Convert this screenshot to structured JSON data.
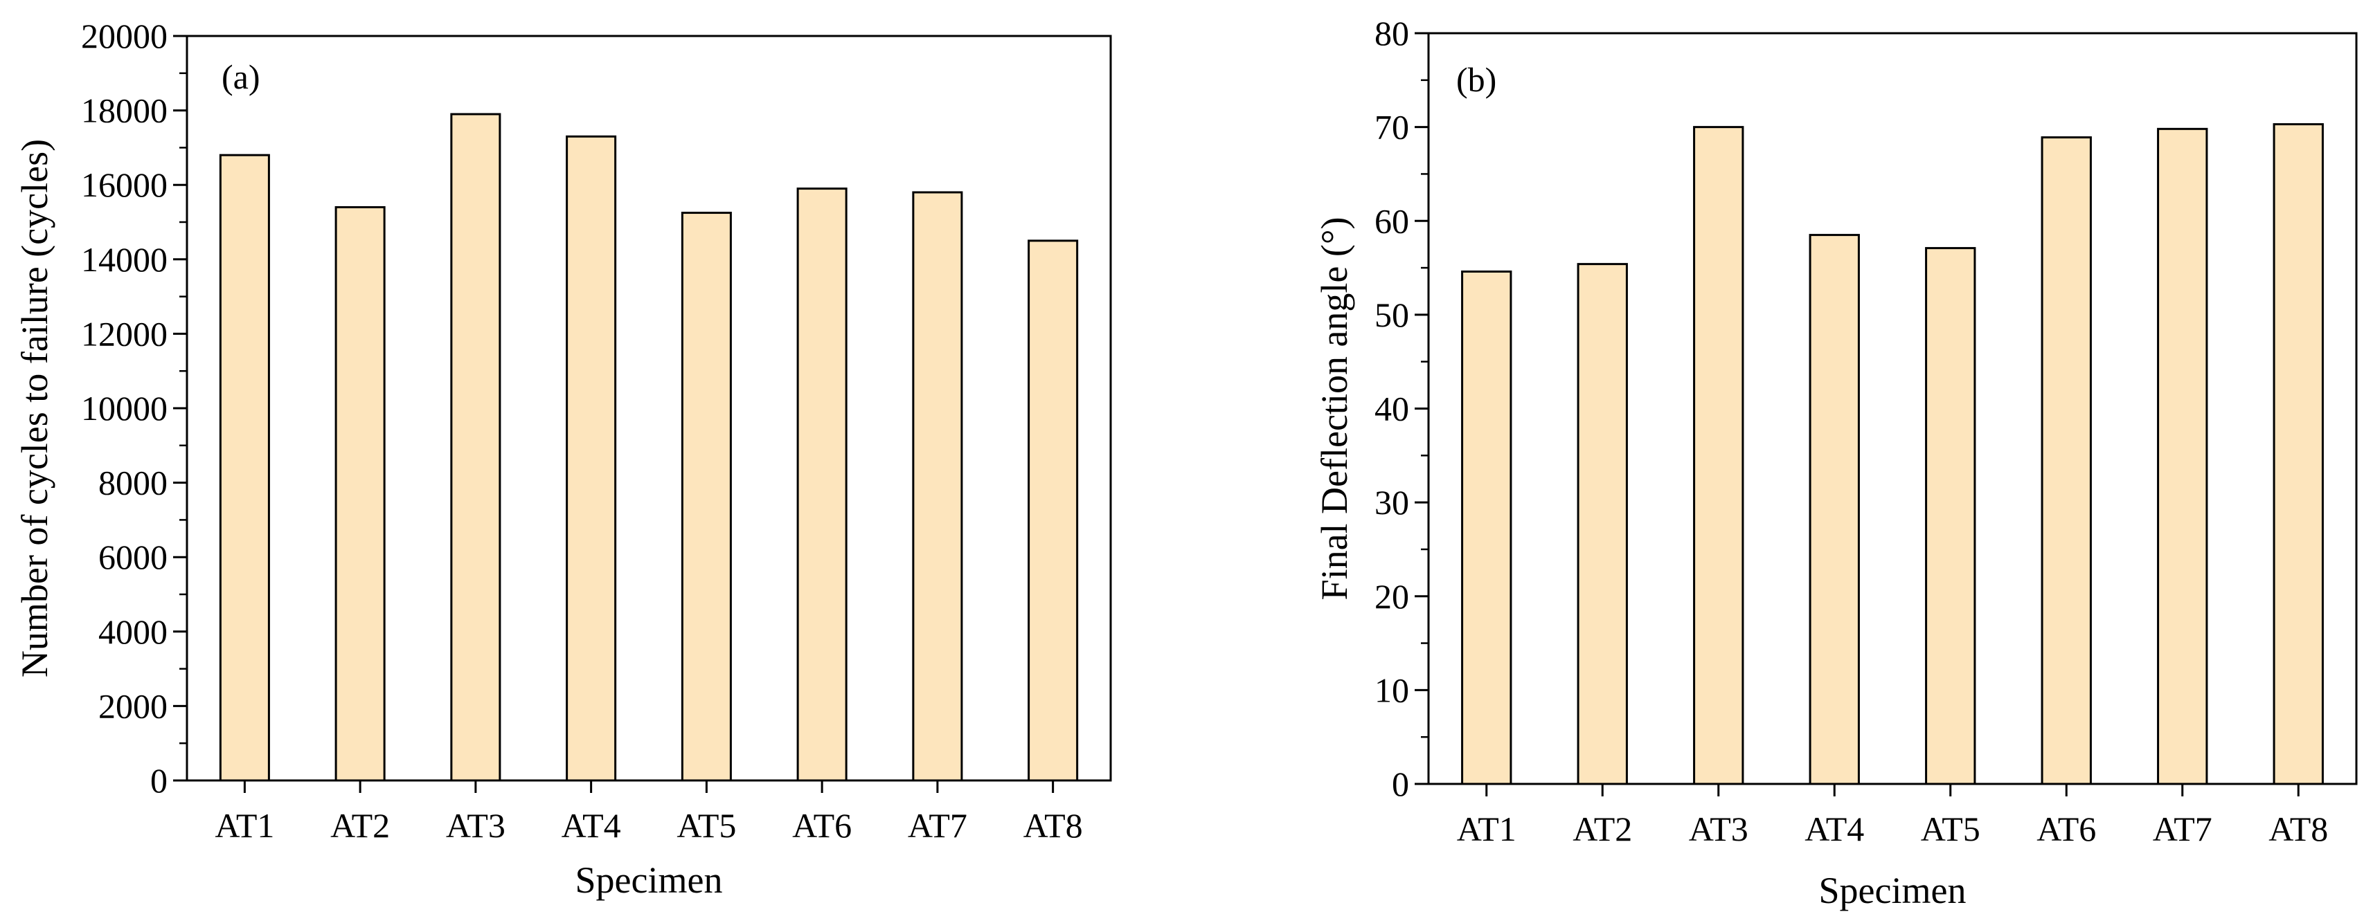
{
  "colors": {
    "bar_fill": "#FDE5BD",
    "bar_stroke": "#000000",
    "axis": "#000000",
    "background": "#ffffff"
  },
  "chart_data": [
    {
      "type": "bar",
      "panel_label": "(a)",
      "title": "",
      "categories": [
        "AT1",
        "AT2",
        "AT3",
        "AT4",
        "AT5",
        "AT6",
        "AT7",
        "AT8"
      ],
      "values": [
        16800,
        15400,
        17900,
        17300,
        15250,
        15900,
        15800,
        14500
      ],
      "xlabel": "Specimen",
      "ylabel": "Number of cycles to failure (cycles)",
      "ylim": [
        0,
        20000
      ],
      "yticks": [
        0,
        2000,
        4000,
        6000,
        8000,
        10000,
        12000,
        14000,
        16000,
        18000,
        20000
      ],
      "grid": false,
      "legend": "none"
    },
    {
      "type": "bar",
      "panel_label": "(b)",
      "title": "",
      "categories": [
        "AT1",
        "AT2",
        "AT3",
        "AT4",
        "AT5",
        "AT6",
        "AT7",
        "AT8"
      ],
      "values": [
        54.6,
        55.4,
        70.0,
        58.5,
        57.1,
        68.9,
        69.8,
        70.3
      ],
      "xlabel": "Specimen",
      "ylabel": "Final Deflection angle (°)",
      "ylim": [
        0,
        80
      ],
      "yticks": [
        0,
        10,
        20,
        30,
        40,
        50,
        60,
        70,
        80
      ],
      "grid": false,
      "legend": "none"
    }
  ]
}
